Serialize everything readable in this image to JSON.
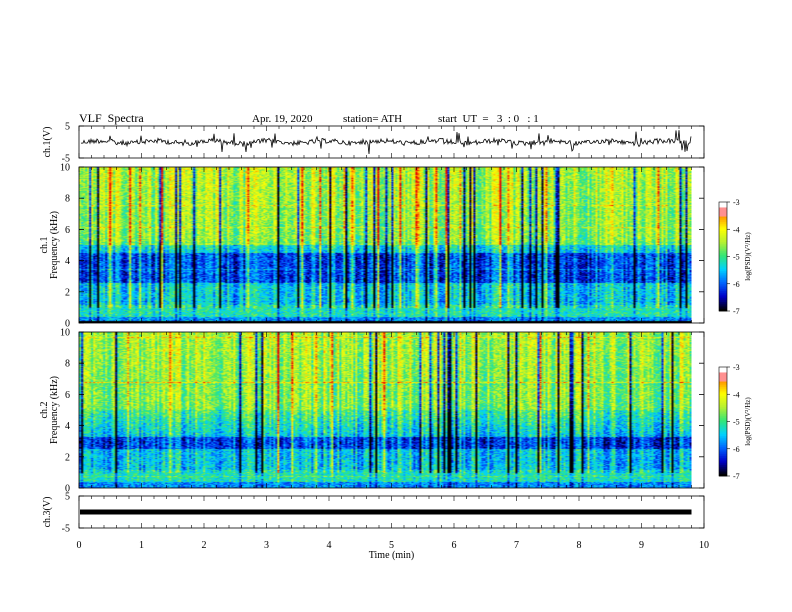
{
  "header": {
    "title": "VLF  Spectra",
    "date": "Apr. 19, 2020",
    "station": "station= ATH",
    "start": "start  UT  =   3  : 0   : 1"
  },
  "chart_data": [
    {
      "type": "line",
      "panel": "ch1-waveform",
      "ylabel": "ch.1(V)",
      "ylim": [
        -5,
        5
      ],
      "yticks": [
        "5",
        "-5"
      ],
      "xlim": [
        0,
        10
      ],
      "baseline": 0,
      "data_end": 9.8
    },
    {
      "type": "heatmap",
      "panel": "ch1-spectrogram",
      "ylabel": "ch.1\nFrequency (kHz)",
      "ylim": [
        0,
        10
      ],
      "yticks": [
        "0",
        "2",
        "4",
        "6",
        "8",
        "10"
      ],
      "xlim": [
        0,
        10
      ],
      "data_end": 9.8,
      "colorbar": {
        "label": "log(PSD)(V²/Hz)",
        "range": [
          -7,
          -3
        ],
        "ticks": [
          "-3",
          "-4",
          "-5",
          "-6",
          "-7"
        ]
      }
    },
    {
      "type": "heatmap",
      "panel": "ch2-spectrogram",
      "ylabel": "ch.2\nFrequency (kHz)",
      "ylim": [
        0,
        10
      ],
      "yticks": [
        "0",
        "2",
        "4",
        "6",
        "8",
        "10"
      ],
      "xlim": [
        0,
        10
      ],
      "data_end": 9.8,
      "colorbar": {
        "label": "log(PSD)(V²/Hz)",
        "range": [
          -7,
          -3
        ],
        "ticks": [
          "-3",
          "-4",
          "-5",
          "-6",
          "-7"
        ]
      }
    },
    {
      "type": "line",
      "panel": "ch3-waveform",
      "ylabel": "ch.3(V)",
      "ylim": [
        -5,
        5
      ],
      "yticks": [
        "5",
        "-5"
      ],
      "xlim": [
        0,
        10
      ],
      "baseline": 0,
      "data_end": 9.8,
      "xlabel": "Time  (min)",
      "xticks": [
        "0",
        "1",
        "2",
        "3",
        "4",
        "5",
        "6",
        "7",
        "8",
        "9",
        "10"
      ]
    }
  ],
  "colors": {
    "scale": [
      "#000000",
      "#0000c8",
      "#0064ff",
      "#00d2ff",
      "#32e678",
      "#b4f032",
      "#ffff00",
      "#ff8c00",
      "#e60000",
      "#ffffff"
    ]
  }
}
